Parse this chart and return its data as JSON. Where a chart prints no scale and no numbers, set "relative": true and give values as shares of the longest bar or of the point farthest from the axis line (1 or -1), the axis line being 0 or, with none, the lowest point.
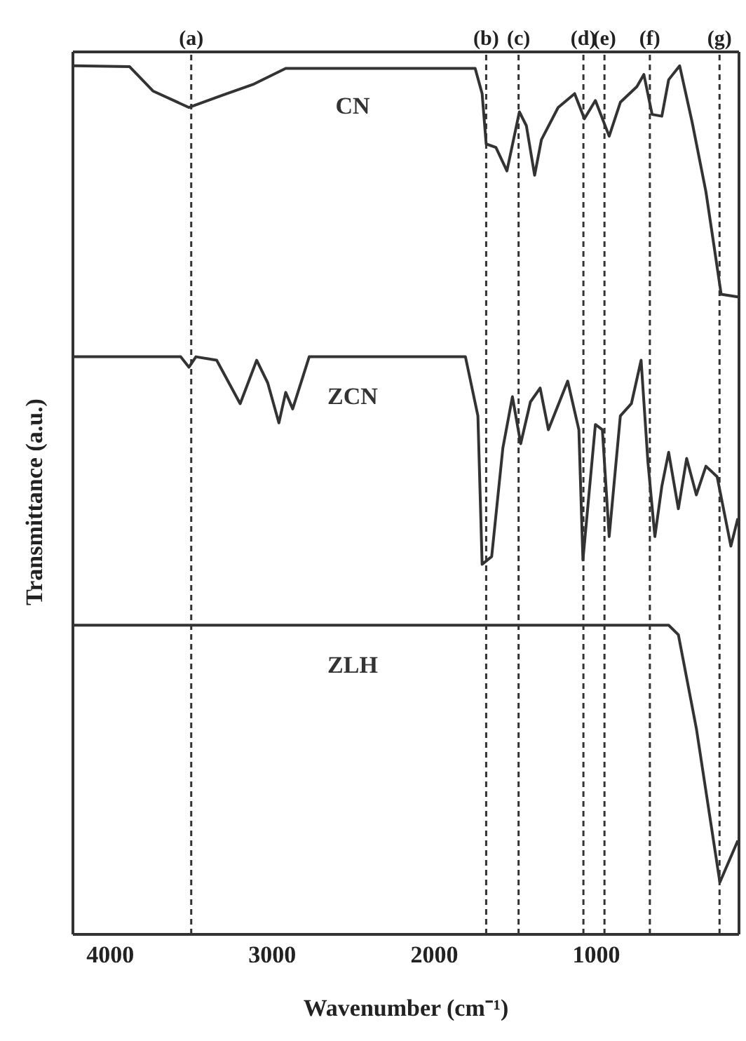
{
  "chart_data": {
    "type": "line",
    "relative": true,
    "xlabel": "Wavenumber (cm⁻¹)",
    "ylabel": "Transmittance (a.u.)",
    "xlim": [
      4230,
      120
    ],
    "xticks": [
      4000,
      3000,
      2000,
      1000
    ],
    "legend": false,
    "grid": false,
    "marker": "none",
    "line_style": "solid",
    "series": [
      {
        "name": "CN",
        "color": "#333333",
        "x": [
          4222,
          3880,
          3736,
          3514,
          3309,
          3113,
          2917,
          1748,
          1705,
          1680,
          1620,
          1552,
          1475,
          1432,
          1381,
          1339,
          1236,
          1134,
          1074,
          1006,
          921,
          852,
          750,
          707,
          656,
          596,
          554,
          486,
          409,
          324,
          272,
          230,
          127
        ],
        "values": [
          1.0,
          0.999,
          0.971,
          0.952,
          0.966,
          0.979,
          0.997,
          0.997,
          0.968,
          0.91,
          0.906,
          0.879,
          0.947,
          0.931,
          0.874,
          0.915,
          0.952,
          0.968,
          0.939,
          0.96,
          0.919,
          0.958,
          0.976,
          0.99,
          0.944,
          0.942,
          0.984,
          1.0,
          0.935,
          0.855,
          0.79,
          0.737,
          0.734
        ]
      },
      {
        "name": "ZCN",
        "color": "#333333",
        "x": [
          4222,
          3565,
          3514,
          3471,
          3343,
          3198,
          3096,
          3028,
          2959,
          2917,
          2874,
          2772,
          1808,
          1731,
          1705,
          1646,
          1577,
          1518,
          1467,
          1407,
          1347,
          1296,
          1177,
          1108,
          1083,
          1006,
          963,
          921,
          852,
          784,
          724,
          682,
          639,
          596,
          554,
          494,
          443,
          383,
          324,
          255,
          170,
          127
        ],
        "values": [
          0.665,
          0.665,
          0.653,
          0.665,
          0.661,
          0.611,
          0.661,
          0.635,
          0.589,
          0.624,
          0.605,
          0.665,
          0.665,
          0.597,
          0.426,
          0.435,
          0.56,
          0.619,
          0.565,
          0.613,
          0.629,
          0.581,
          0.637,
          0.581,
          0.431,
          0.587,
          0.581,
          0.458,
          0.597,
          0.611,
          0.661,
          0.544,
          0.458,
          0.516,
          0.555,
          0.49,
          0.548,
          0.506,
          0.539,
          0.527,
          0.447,
          0.479
        ]
      },
      {
        "name": "ZLH",
        "color": "#333333",
        "x": [
          4222,
          554,
          494,
          383,
          238,
          127
        ],
        "values": [
          0.356,
          0.356,
          0.345,
          0.237,
          0.06,
          0.108
        ]
      }
    ],
    "ref_lines": [
      {
        "axis": "x",
        "value": 3500,
        "label": "(a)",
        "line_style": "dashed",
        "color": "#333333"
      },
      {
        "axis": "x",
        "value": 1680,
        "label": "(b)",
        "line_style": "dashed",
        "color": "#333333"
      },
      {
        "axis": "x",
        "value": 1480,
        "label": "(c)",
        "line_style": "dashed",
        "color": "#333333"
      },
      {
        "axis": "x",
        "value": 1080,
        "label": "(d)",
        "line_style": "dashed",
        "color": "#333333"
      },
      {
        "axis": "x",
        "value": 950,
        "label": "(e)",
        "line_style": "dashed",
        "color": "#333333"
      },
      {
        "axis": "x",
        "value": 670,
        "label": "(f)",
        "line_style": "dashed",
        "color": "#333333"
      },
      {
        "axis": "x",
        "value": 240,
        "label": "(g)",
        "line_style": "dashed",
        "color": "#333333"
      }
    ]
  }
}
